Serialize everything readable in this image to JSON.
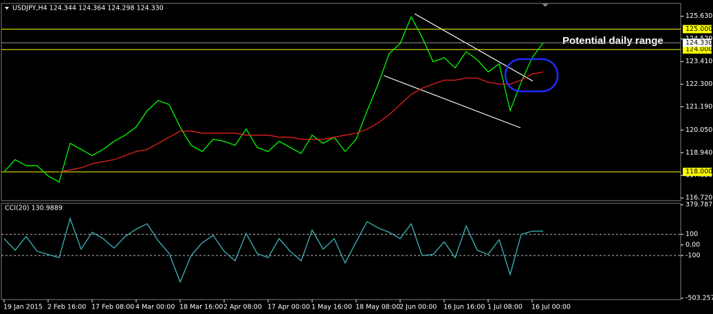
{
  "chart_data": [
    {
      "type": "line",
      "title": "USDJPY,H4  124.344 124.364 124.298 124.330",
      "annotation": "Potential daily range",
      "x": [
        1,
        5,
        9,
        13,
        17,
        21,
        25,
        29,
        33,
        37,
        41,
        45,
        49,
        53,
        57,
        61,
        65,
        69,
        73,
        77,
        81,
        85,
        89,
        93,
        97,
        101,
        105,
        109,
        113,
        117,
        121,
        125,
        129,
        133,
        137,
        141,
        145,
        149,
        153,
        157,
        161,
        165,
        169,
        173,
        177,
        181,
        185,
        189,
        193,
        197
      ],
      "xlim": [
        0,
        247
      ],
      "ylim": [
        116.59,
        126.26
      ],
      "yticks": [
        {
          "value": 125.63,
          "label": "125.630"
        },
        {
          "value": 124.52,
          "label": "124.520"
        },
        {
          "value": 123.41,
          "label": "123.410"
        },
        {
          "value": 122.3,
          "label": "122.300"
        },
        {
          "value": 121.19,
          "label": "121.190"
        },
        {
          "value": 120.05,
          "label": "120.050"
        },
        {
          "value": 118.94,
          "label": "118.940"
        },
        {
          "value": 117.83,
          "label": "117.830"
        },
        {
          "value": 116.72,
          "label": "116.720"
        }
      ],
      "hlines": [
        {
          "value": 125,
          "label": "125.000"
        },
        {
          "value": 124,
          "label": "124.000"
        },
        {
          "value": 118,
          "label": "118.000"
        }
      ],
      "hline_color": "#ffff00",
      "current": {
        "value": 124.33,
        "label": "124.330"
      },
      "series": [
        {
          "color": "#00ff00",
          "values": [
            118.0,
            118.6,
            118.3,
            118.3,
            117.8,
            117.5,
            119.4,
            119.1,
            118.8,
            119.1,
            119.5,
            119.8,
            120.2,
            121.0,
            121.5,
            121.3,
            120.2,
            119.3,
            119.0,
            119.6,
            119.5,
            119.3,
            120.1,
            119.2,
            119.0,
            119.5,
            119.2,
            118.9,
            119.8,
            119.4,
            119.7,
            119.0,
            119.6,
            121.0,
            122.3,
            123.8,
            124.3,
            125.6,
            124.6,
            123.4,
            123.6,
            123.1,
            123.9,
            123.5,
            122.9,
            123.3,
            121.0,
            122.4,
            123.6,
            124.33
          ]
        },
        {
          "color": "#e8201a",
          "values": [
            null,
            null,
            null,
            null,
            null,
            118.0,
            118.1,
            118.2,
            118.4,
            118.5,
            118.6,
            118.8,
            119.0,
            119.1,
            119.4,
            119.7,
            120.0,
            120.0,
            119.9,
            119.9,
            119.9,
            119.9,
            119.8,
            119.8,
            119.8,
            119.7,
            119.7,
            119.6,
            119.6,
            119.6,
            119.7,
            119.8,
            119.9,
            120.1,
            120.4,
            120.8,
            121.3,
            121.8,
            122.1,
            122.3,
            122.5,
            122.5,
            122.6,
            122.6,
            122.4,
            122.3,
            122.3,
            122.5,
            122.8,
            122.9
          ]
        }
      ]
    },
    {
      "type": "line",
      "title": "CCI(20) 130.9889",
      "x": [
        1,
        5,
        9,
        13,
        17,
        21,
        25,
        29,
        33,
        37,
        41,
        45,
        49,
        53,
        57,
        61,
        65,
        69,
        73,
        77,
        81,
        85,
        89,
        93,
        97,
        101,
        105,
        109,
        113,
        117,
        121,
        125,
        129,
        133,
        137,
        141,
        145,
        149,
        153,
        157,
        161,
        165,
        169,
        173,
        177,
        181,
        185,
        189,
        193,
        197
      ],
      "xlim": [
        0,
        247
      ],
      "ylim": [
        -503.2579,
        379.7873
      ],
      "yticks": [
        379.7873,
        100,
        {
          "value": 0,
          "label": "0.00"
        },
        -100,
        -503.2579
      ],
      "levels": [
        100,
        -100
      ],
      "xticks": [
        {
          "value": 1,
          "label": "19 Jan 2015"
        },
        {
          "value": 17,
          "label": "2 Feb 16:00"
        },
        {
          "value": 33,
          "label": "17 Feb 08:00"
        },
        {
          "value": 49,
          "label": "4 Mar 00:00"
        },
        {
          "value": 65,
          "label": "18 Mar 16:00"
        },
        {
          "value": 81,
          "label": "2 Apr 08:00"
        },
        {
          "value": 97,
          "label": "17 Apr 00:00"
        },
        {
          "value": 113,
          "label": "1 May 16:00"
        },
        {
          "value": 129,
          "label": "18 May 08:00"
        },
        {
          "value": 145,
          "label": "2 Jun 00:00"
        },
        {
          "value": 161,
          "label": "16 Jun 16:00"
        },
        {
          "value": 177,
          "label": "1 Jul 08:00"
        },
        {
          "value": 193,
          "label": "16 Jul 00:00"
        }
      ],
      "series": [
        {
          "color": "#3fb5bf",
          "values": [
            60,
            -50,
            80,
            -60,
            -90,
            -120,
            250,
            -40,
            120,
            60,
            -30,
            80,
            150,
            200,
            40,
            -80,
            -350,
            -100,
            20,
            90,
            -60,
            -150,
            110,
            -80,
            -120,
            60,
            -60,
            -150,
            140,
            -40,
            60,
            -170,
            30,
            220,
            160,
            120,
            60,
            200,
            -100,
            -90,
            30,
            -120,
            180,
            -50,
            -90,
            50,
            -280,
            100,
            130,
            130.9889
          ]
        }
      ]
    }
  ]
}
